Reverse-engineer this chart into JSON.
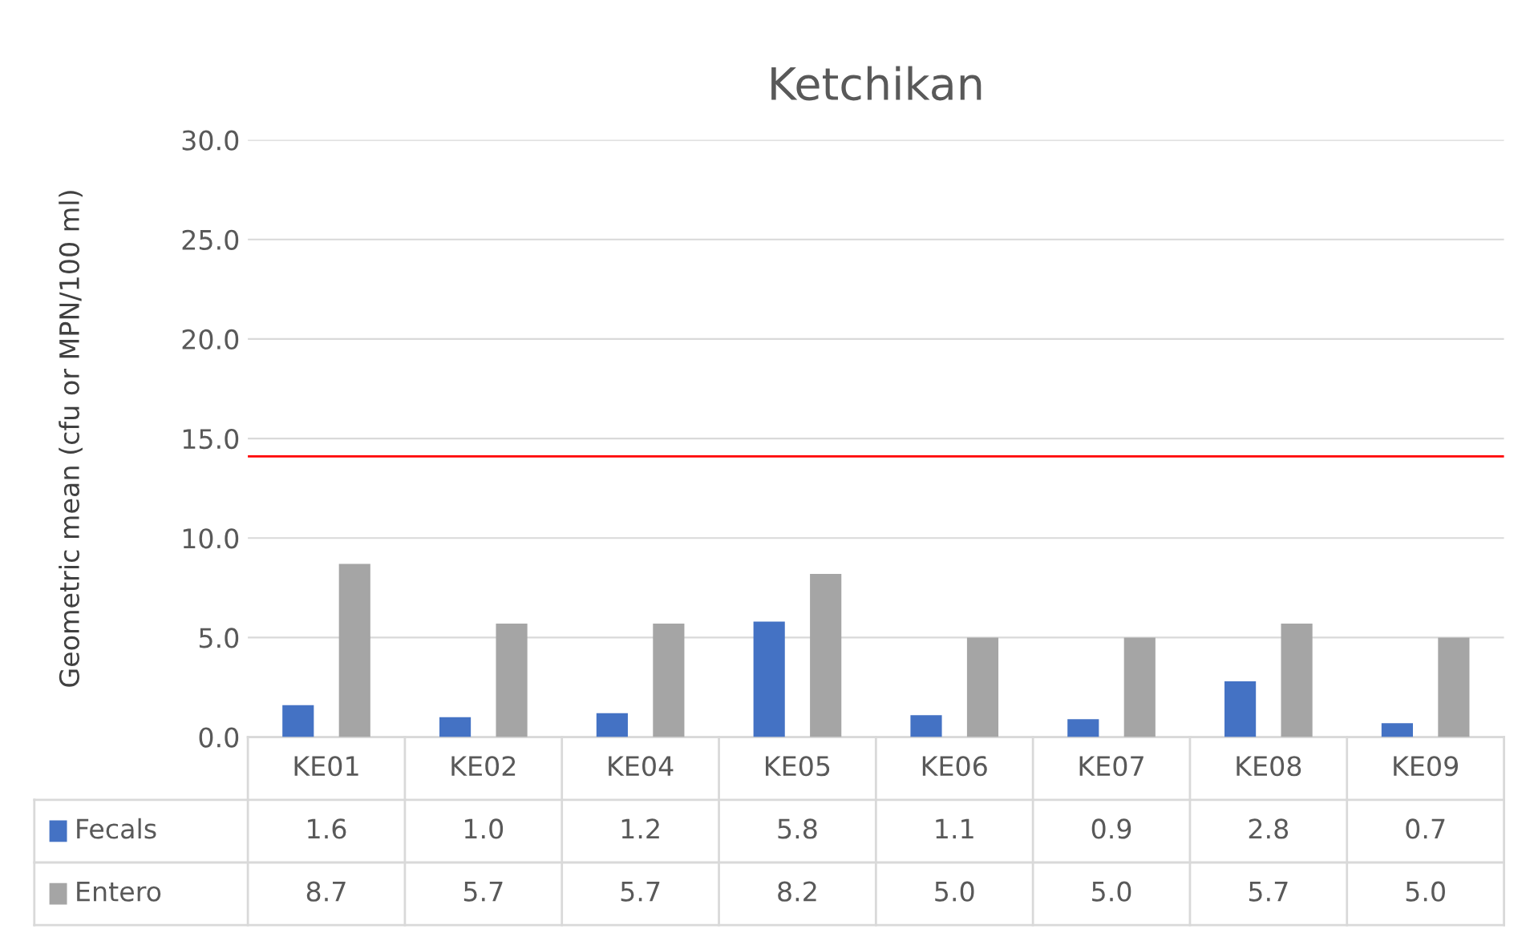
{
  "chart_data": {
    "type": "bar",
    "title": "Ketchikan",
    "ylabel": "Geometric mean (cfu or MPN/100 ml)",
    "categories": [
      "KE01",
      "KE02",
      "KE04",
      "KE05",
      "KE06",
      "KE07",
      "KE08",
      "KE09"
    ],
    "series": [
      {
        "name": "Fecals",
        "color": "#4472c4",
        "values": [
          1.6,
          1.0,
          1.2,
          5.8,
          1.1,
          0.9,
          2.8,
          0.7
        ],
        "value_labels": [
          "1.6",
          "1.0",
          "1.2",
          "5.8",
          "1.1",
          "0.9",
          "2.8",
          "0.7"
        ]
      },
      {
        "name": "Entero",
        "color": "#a5a5a5",
        "values": [
          8.7,
          5.7,
          5.7,
          8.2,
          5.0,
          5.0,
          5.7,
          5.0
        ],
        "value_labels": [
          "8.7",
          "5.7",
          "5.7",
          "8.2",
          "5.0",
          "5.0",
          "5.7",
          "5.0"
        ]
      }
    ],
    "ylim": [
      0,
      30
    ],
    "yticks": [
      {
        "value": 0,
        "label": "0.0"
      },
      {
        "value": 5,
        "label": "5.0"
      },
      {
        "value": 10,
        "label": "10.0"
      },
      {
        "value": 15,
        "label": "15.0"
      },
      {
        "value": 20,
        "label": "20.0"
      },
      {
        "value": 25,
        "label": "25.0"
      },
      {
        "value": 30,
        "label": "30.0"
      }
    ],
    "ref_lines": [
      {
        "axis": "y",
        "value": 14.1,
        "color": "#ff0000"
      }
    ],
    "grid": "y",
    "legend": "bottom"
  }
}
